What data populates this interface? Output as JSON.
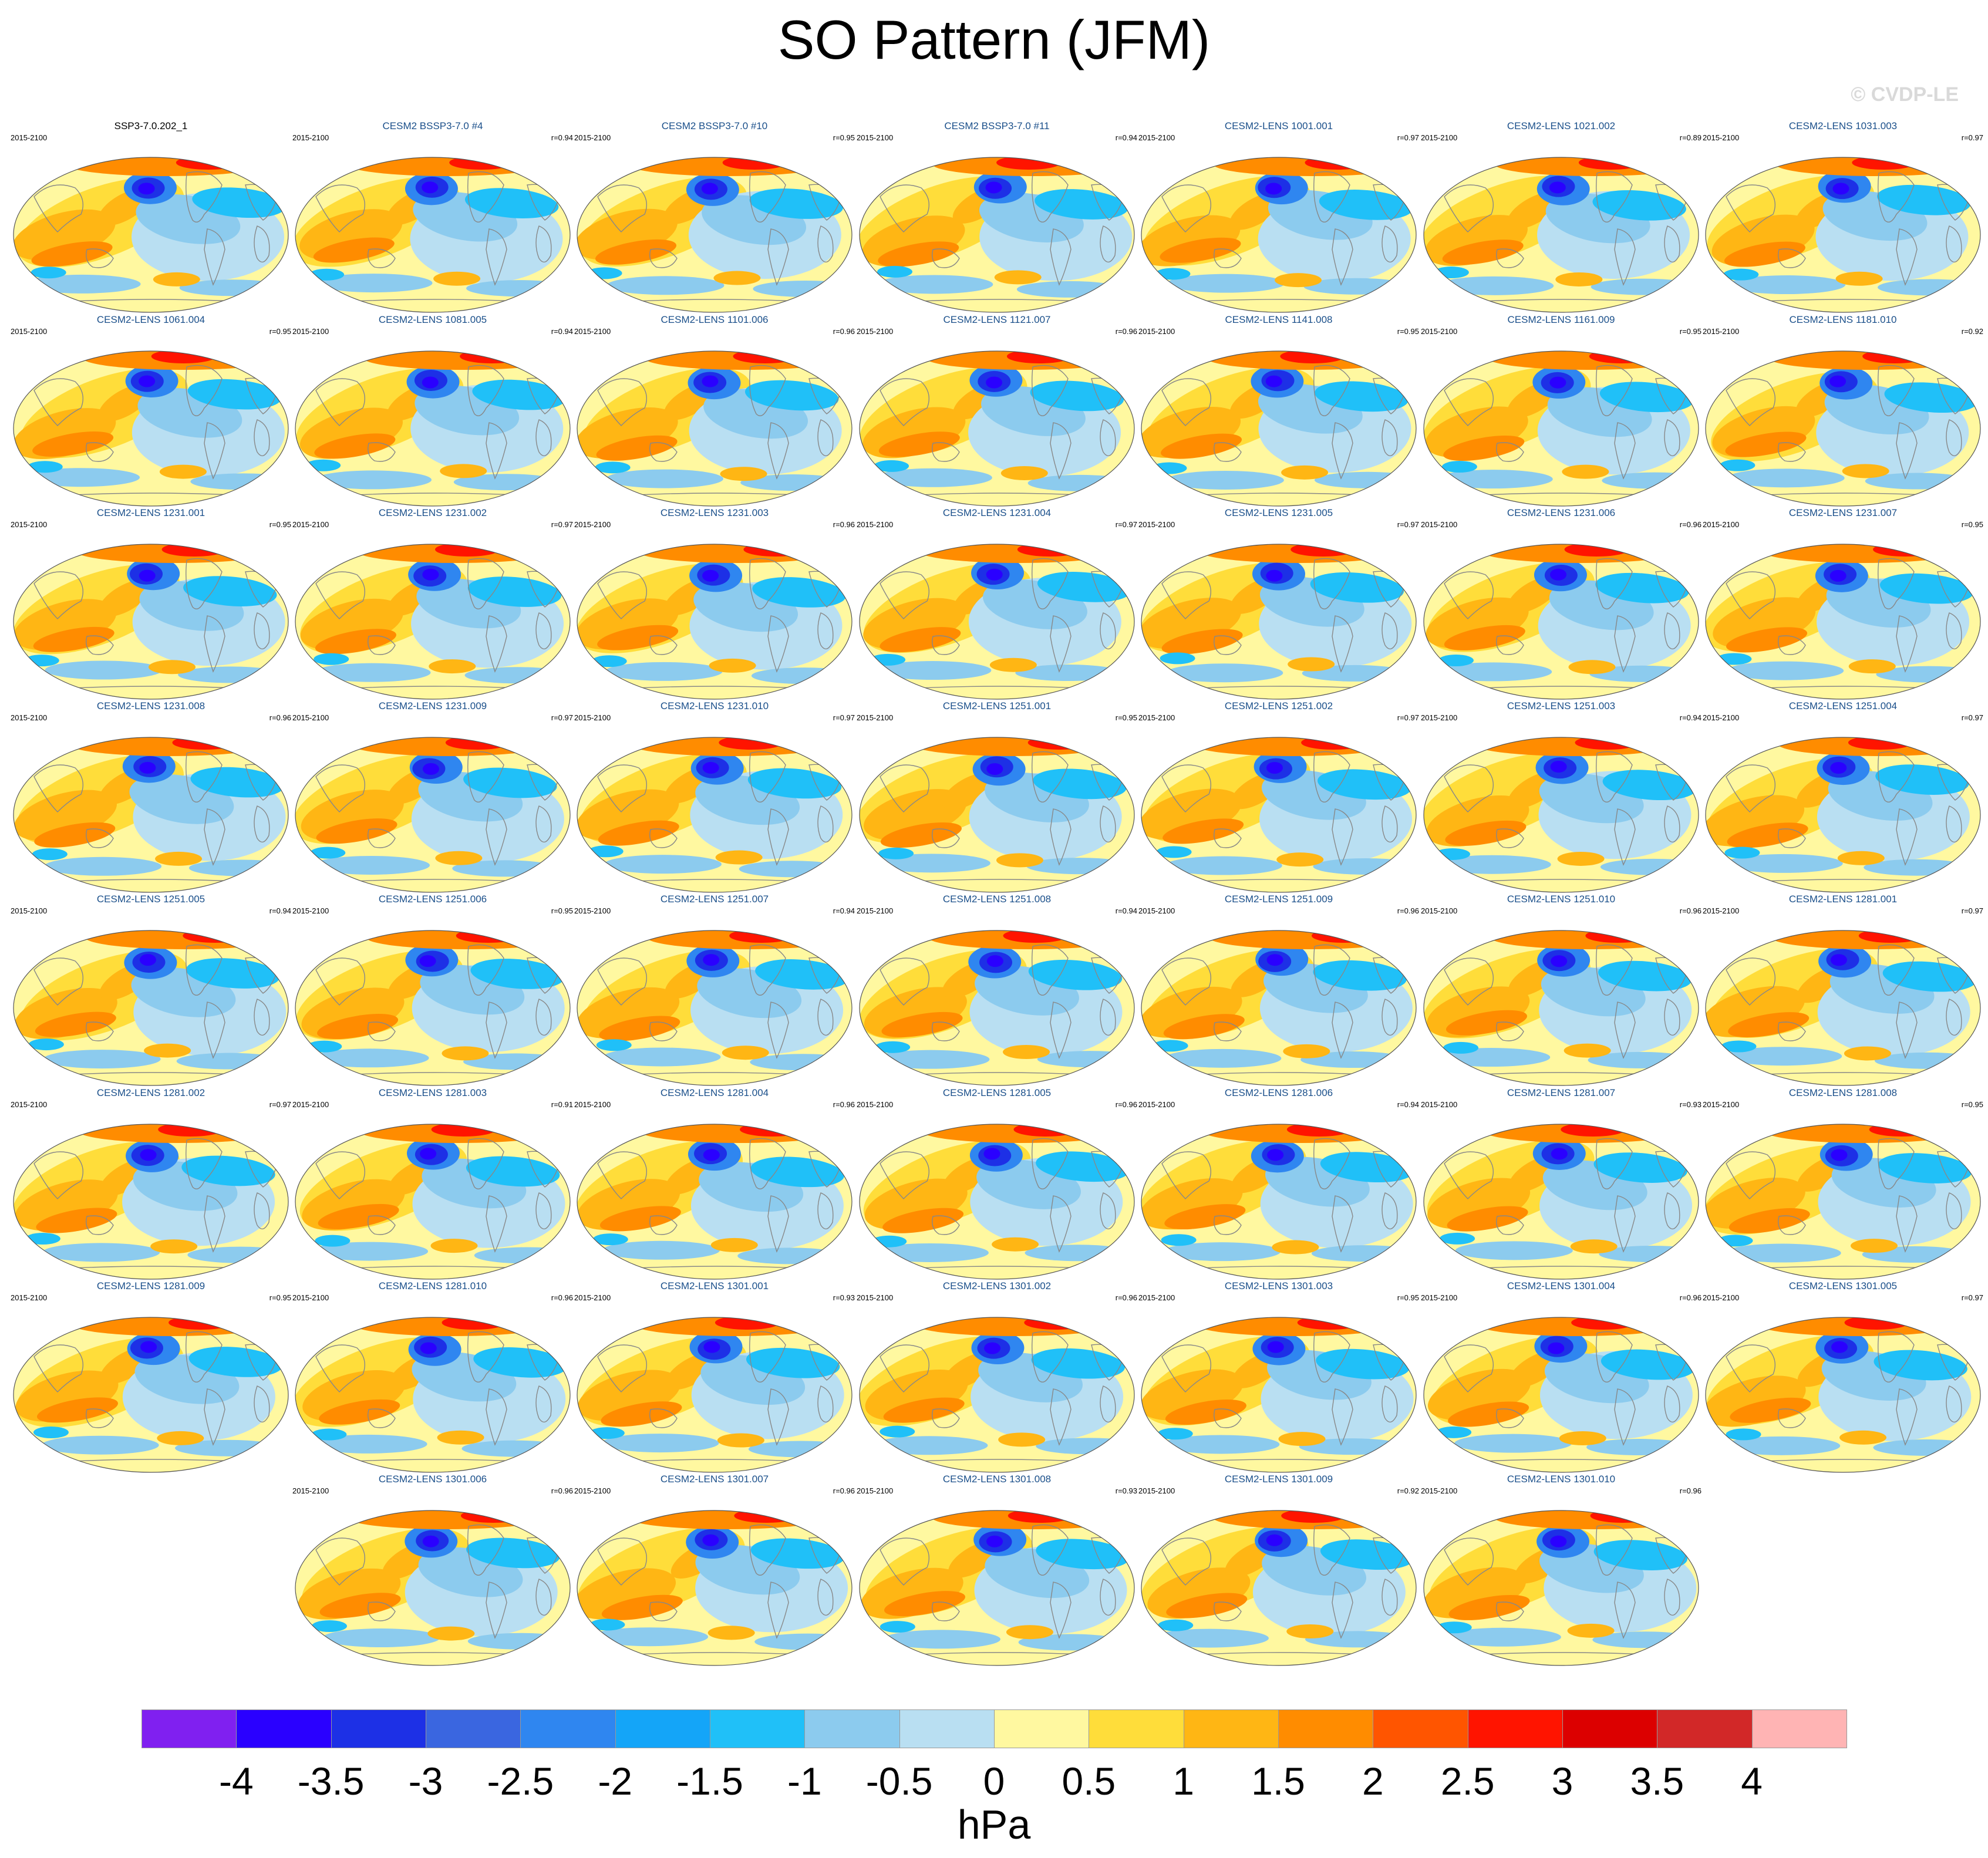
{
  "title": "SO Pattern (JFM)",
  "credit": "© CVDP-LE",
  "units": "hPa",
  "colors": {
    "levels": [
      "#8020f0",
      "#2a00ff",
      "#1d30e6",
      "#3a66e0",
      "#2f86f0",
      "#14a5f8",
      "#20c0f8",
      "#8ccbee",
      "#b9dff2",
      "#fff8a0",
      "#ffdd3a",
      "#ffb614",
      "#ff8c00",
      "#ff5500",
      "#ff1400",
      "#dc0000",
      "#d22828",
      "#ffb4b4"
    ],
    "land": "#888888",
    "frame": "#555555"
  },
  "chart_data": {
    "type": "heatmap",
    "title": "SO Pattern (JFM)",
    "projection": "Robinson",
    "colorbar": {
      "units": "hPa",
      "tick_labels": [
        "-4",
        "-3.5",
        "-3",
        "-2.5",
        "-2",
        "-1.5",
        "-1",
        "-0.5",
        "0",
        "0.5",
        "1",
        "1.5",
        "2",
        "2.5",
        "3",
        "3.5",
        "4"
      ],
      "levels": [
        -4,
        -3.5,
        -3,
        -2.5,
        -2,
        -1.5,
        -1,
        -0.5,
        0,
        0.5,
        1,
        1.5,
        2,
        2.5,
        3,
        3.5,
        4
      ]
    },
    "panels": [
      {
        "name": "SSP3-7.0.202_1",
        "period": "2015-2100",
        "r": ""
      },
      {
        "name": "CESM2 BSSP3-7.0 #4",
        "period": "2015-2100",
        "r": "r=0.94"
      },
      {
        "name": "CESM2 BSSP3-7.0 #10",
        "period": "2015-2100",
        "r": "r=0.95"
      },
      {
        "name": "CESM2 BSSP3-7.0 #11",
        "period": "2015-2100",
        "r": "r=0.94"
      },
      {
        "name": "CESM2-LENS 1001.001",
        "period": "2015-2100",
        "r": "r=0.97"
      },
      {
        "name": "CESM2-LENS 1021.002",
        "period": "2015-2100",
        "r": "r=0.89"
      },
      {
        "name": "CESM2-LENS 1031.003",
        "period": "2015-2100",
        "r": "r=0.97"
      },
      {
        "name": "CESM2-LENS 1061.004",
        "period": "2015-2100",
        "r": "r=0.95"
      },
      {
        "name": "CESM2-LENS 1081.005",
        "period": "2015-2100",
        "r": "r=0.94"
      },
      {
        "name": "CESM2-LENS 1101.006",
        "period": "2015-2100",
        "r": "r=0.96"
      },
      {
        "name": "CESM2-LENS 1121.007",
        "period": "2015-2100",
        "r": "r=0.96"
      },
      {
        "name": "CESM2-LENS 1141.008",
        "period": "2015-2100",
        "r": "r=0.95"
      },
      {
        "name": "CESM2-LENS 1161.009",
        "period": "2015-2100",
        "r": "r=0.95"
      },
      {
        "name": "CESM2-LENS 1181.010",
        "period": "2015-2100",
        "r": "r=0.92"
      },
      {
        "name": "CESM2-LENS 1231.001",
        "period": "2015-2100",
        "r": "r=0.95"
      },
      {
        "name": "CESM2-LENS 1231.002",
        "period": "2015-2100",
        "r": "r=0.97"
      },
      {
        "name": "CESM2-LENS 1231.003",
        "period": "2015-2100",
        "r": "r=0.96"
      },
      {
        "name": "CESM2-LENS 1231.004",
        "period": "2015-2100",
        "r": "r=0.97"
      },
      {
        "name": "CESM2-LENS 1231.005",
        "period": "2015-2100",
        "r": "r=0.97"
      },
      {
        "name": "CESM2-LENS 1231.006",
        "period": "2015-2100",
        "r": "r=0.96"
      },
      {
        "name": "CESM2-LENS 1231.007",
        "period": "2015-2100",
        "r": "r=0.95"
      },
      {
        "name": "CESM2-LENS 1231.008",
        "period": "2015-2100",
        "r": "r=0.96"
      },
      {
        "name": "CESM2-LENS 1231.009",
        "period": "2015-2100",
        "r": "r=0.97"
      },
      {
        "name": "CESM2-LENS 1231.010",
        "period": "2015-2100",
        "r": "r=0.97"
      },
      {
        "name": "CESM2-LENS 1251.001",
        "period": "2015-2100",
        "r": "r=0.95"
      },
      {
        "name": "CESM2-LENS 1251.002",
        "period": "2015-2100",
        "r": "r=0.97"
      },
      {
        "name": "CESM2-LENS 1251.003",
        "period": "2015-2100",
        "r": "r=0.94"
      },
      {
        "name": "CESM2-LENS 1251.004",
        "period": "2015-2100",
        "r": "r=0.97"
      },
      {
        "name": "CESM2-LENS 1251.005",
        "period": "2015-2100",
        "r": "r=0.94"
      },
      {
        "name": "CESM2-LENS 1251.006",
        "period": "2015-2100",
        "r": "r=0.95"
      },
      {
        "name": "CESM2-LENS 1251.007",
        "period": "2015-2100",
        "r": "r=0.94"
      },
      {
        "name": "CESM2-LENS 1251.008",
        "period": "2015-2100",
        "r": "r=0.94"
      },
      {
        "name": "CESM2-LENS 1251.009",
        "period": "2015-2100",
        "r": "r=0.96"
      },
      {
        "name": "CESM2-LENS 1251.010",
        "period": "2015-2100",
        "r": "r=0.96"
      },
      {
        "name": "CESM2-LENS 1281.001",
        "period": "2015-2100",
        "r": "r=0.97"
      },
      {
        "name": "CESM2-LENS 1281.002",
        "period": "2015-2100",
        "r": "r=0.97"
      },
      {
        "name": "CESM2-LENS 1281.003",
        "period": "2015-2100",
        "r": "r=0.91"
      },
      {
        "name": "CESM2-LENS 1281.004",
        "period": "2015-2100",
        "r": "r=0.96"
      },
      {
        "name": "CESM2-LENS 1281.005",
        "period": "2015-2100",
        "r": "r=0.96"
      },
      {
        "name": "CESM2-LENS 1281.006",
        "period": "2015-2100",
        "r": "r=0.94"
      },
      {
        "name": "CESM2-LENS 1281.007",
        "period": "2015-2100",
        "r": "r=0.93"
      },
      {
        "name": "CESM2-LENS 1281.008",
        "period": "2015-2100",
        "r": "r=0.95"
      },
      {
        "name": "CESM2-LENS 1281.009",
        "period": "2015-2100",
        "r": "r=0.95"
      },
      {
        "name": "CESM2-LENS 1281.010",
        "period": "2015-2100",
        "r": "r=0.96"
      },
      {
        "name": "CESM2-LENS 1301.001",
        "period": "2015-2100",
        "r": "r=0.93"
      },
      {
        "name": "CESM2-LENS 1301.002",
        "period": "2015-2100",
        "r": "r=0.96"
      },
      {
        "name": "CESM2-LENS 1301.003",
        "period": "2015-2100",
        "r": "r=0.95"
      },
      {
        "name": "CESM2-LENS 1301.004",
        "period": "2015-2100",
        "r": "r=0.96"
      },
      {
        "name": "CESM2-LENS 1301.005",
        "period": "2015-2100",
        "r": "r=0.97"
      },
      {
        "name": "CESM2-LENS 1301.006",
        "period": "2015-2100",
        "r": "r=0.96"
      },
      {
        "name": "CESM2-LENS 1301.007",
        "period": "2015-2100",
        "r": "r=0.96"
      },
      {
        "name": "CESM2-LENS 1301.008",
        "period": "2015-2100",
        "r": "r=0.93"
      },
      {
        "name": "CESM2-LENS 1301.009",
        "period": "2015-2100",
        "r": "r=0.92"
      },
      {
        "name": "CESM2-LENS 1301.010",
        "period": "2015-2100",
        "r": "r=0.96"
      }
    ]
  }
}
